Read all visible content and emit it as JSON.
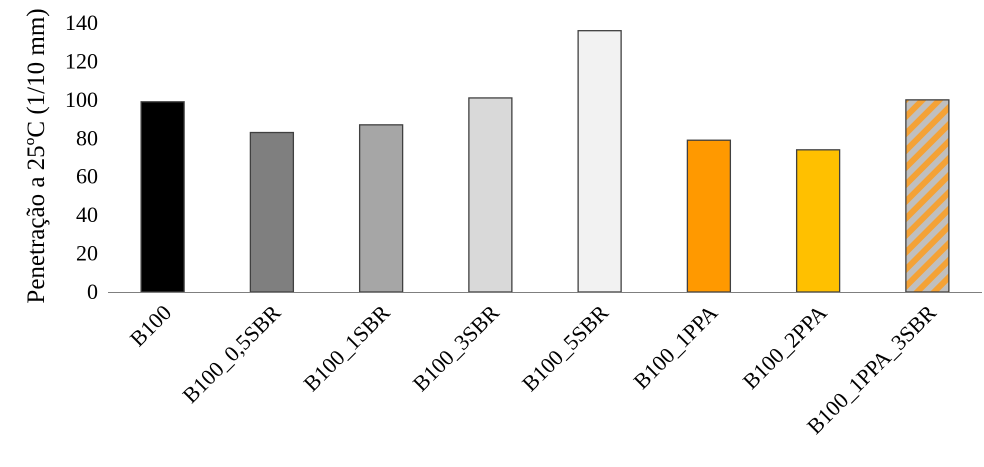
{
  "chart_data": {
    "type": "bar",
    "title": "",
    "xlabel": "",
    "ylabel": "Penetração a 25ºC (1/10 mm)",
    "ylim": [
      0,
      140
    ],
    "yticks": [
      0,
      20,
      40,
      60,
      80,
      100,
      120,
      140
    ],
    "grid": false,
    "legend": "none",
    "categories": [
      "B100",
      "B100_0,5SBR",
      "B100_1SBR",
      "B100_3SBR",
      "B100_5SBR",
      "B100_1PPA",
      "B100_2PPA",
      "B100_1PPA_3SBR"
    ],
    "values": [
      99,
      83,
      87,
      101,
      136,
      79,
      74,
      100
    ],
    "colors": [
      "#000000",
      "#7f7f7f",
      "#a6a6a6",
      "#d9d9d9",
      "#f2f2f2",
      "#ff9900",
      "#ffc000",
      "hatch-orange-grey"
    ],
    "hatch_colors": {
      "a": "#f4a236",
      "b": "#bfbfbf"
    },
    "bar_outline": "#404040"
  }
}
